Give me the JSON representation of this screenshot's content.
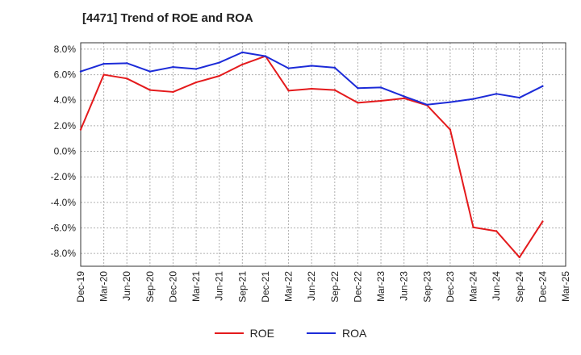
{
  "title": "[4471]  Trend of ROE and ROA",
  "colors": {
    "roe": "#e41a1c",
    "roa": "#1c2bd8",
    "grid": "#b0b0b0"
  },
  "chart_data": {
    "type": "line",
    "title": "[4471]  Trend of ROE and ROA",
    "xlabel": "",
    "ylabel": "",
    "ylim": [
      -9,
      8.5
    ],
    "yticks": [
      8,
      6,
      4,
      2,
      0,
      -2,
      -4,
      -6,
      -8
    ],
    "ytick_labels": [
      "8.0%",
      "6.0%",
      "4.0%",
      "2.0%",
      "0.0%",
      "-2.0%",
      "-4.0%",
      "-6.0%",
      "-8.0%"
    ],
    "categories": [
      "Dec-19",
      "Mar-20",
      "Jun-20",
      "Sep-20",
      "Dec-20",
      "Mar-21",
      "Jun-21",
      "Sep-21",
      "Dec-21",
      "Mar-22",
      "Jun-22",
      "Sep-22",
      "Dec-22",
      "Mar-23",
      "Jun-23",
      "Sep-23",
      "Dec-23",
      "Mar-24",
      "Jun-24",
      "Sep-24",
      "Dec-24",
      "Mar-25"
    ],
    "grid": true,
    "legend_position": "bottom",
    "series": [
      {
        "name": "ROE",
        "color": "#e41a1c",
        "values": [
          1.7,
          6.0,
          5.7,
          4.8,
          4.65,
          5.4,
          5.9,
          6.8,
          7.45,
          4.75,
          4.9,
          4.8,
          3.8,
          3.95,
          4.15,
          3.6,
          1.7,
          -5.95,
          -6.25,
          -8.3,
          -5.5,
          null
        ]
      },
      {
        "name": "ROA",
        "color": "#1c2bd8",
        "values": [
          6.25,
          6.85,
          6.9,
          6.25,
          6.6,
          6.45,
          6.95,
          7.75,
          7.45,
          6.5,
          6.7,
          6.55,
          4.95,
          5.0,
          4.3,
          3.65,
          3.85,
          4.1,
          4.5,
          4.2,
          5.1,
          null
        ]
      }
    ]
  }
}
